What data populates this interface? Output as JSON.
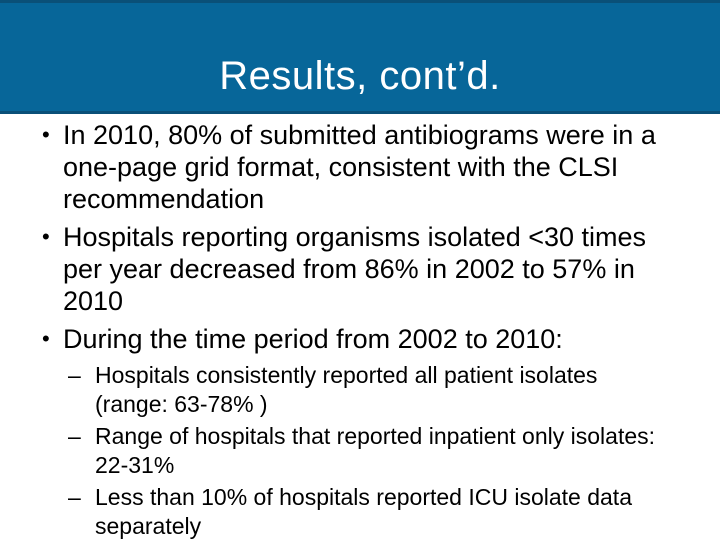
{
  "slide": {
    "title": "Results, cont’d.",
    "theme": {
      "band_color": "#076699",
      "band_edge_color": "#0a5078",
      "title_color": "#ffffff",
      "body_text_color": "#000000",
      "background": "#ffffff"
    },
    "bullets": [
      {
        "level": 1,
        "marker": "•",
        "text": "In 2010, 80% of submitted antibiograms were in a\none-page grid format, consistent with the CLSI\nrecommendation"
      },
      {
        "level": 1,
        "marker": "•",
        "text": "Hospitals reporting organisms isolated <30 times\nper year decreased from 86% in 2002 to 57% in\n2010"
      },
      {
        "level": 1,
        "marker": "•",
        "text": "During the time period from 2002 to 2010:"
      },
      {
        "level": 2,
        "marker": "–",
        "text": "Hospitals consistently reported all patient isolates\n(range: 63-78% )"
      },
      {
        "level": 2,
        "marker": "–",
        "text": "Range of hospitals that reported inpatient only isolates:\n22-31%"
      },
      {
        "level": 2,
        "marker": "–",
        "text": "Less than 10% of hospitals reported ICU isolate data\nseparately"
      }
    ]
  }
}
